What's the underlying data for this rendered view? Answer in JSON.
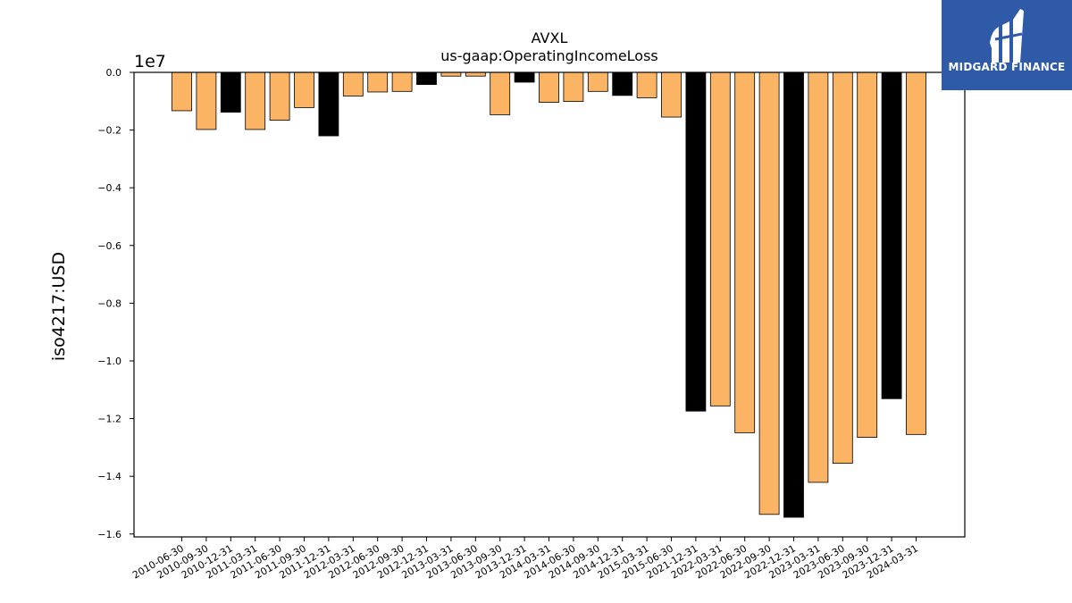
{
  "brand": {
    "name": "MIDGARD FINANCE",
    "bg_color": "#2e5aa8"
  },
  "chart_data": {
    "type": "bar",
    "title": "AVXL",
    "subtitle": "us-gaap:OperatingIncomeLoss",
    "ylabel": "iso4217:USD",
    "xlabel": "",
    "y_offset_label": "1e7",
    "ylim": [
      -16100000,
      0
    ],
    "yticks": [
      0,
      -2000000,
      -4000000,
      -6000000,
      -8000000,
      -10000000,
      -12000000,
      -14000000,
      -16000000
    ],
    "ytick_labels": [
      "0.0",
      "−0.2",
      "−0.4",
      "−0.6",
      "−0.8",
      "−1.0",
      "−1.2",
      "−1.4",
      "−1.6"
    ],
    "grid": false,
    "categories": [
      "2010-06-30",
      "2010-09-30",
      "2010-12-31",
      "2011-03-31",
      "2011-06-30",
      "2011-09-30",
      "2011-12-31",
      "2012-03-31",
      "2012-06-30",
      "2012-09-30",
      "2012-12-31",
      "2013-03-31",
      "2013-06-30",
      "2013-09-30",
      "2013-12-31",
      "2014-03-31",
      "2014-06-30",
      "2014-09-30",
      "2014-12-31",
      "2015-03-31",
      "2015-06-30",
      "2021-12-31",
      "2022-03-31",
      "2022-06-30",
      "2022-09-30",
      "2022-12-31",
      "2023-03-31",
      "2023-06-30",
      "2023-09-30",
      "2023-12-31",
      "2024-03-31"
    ],
    "values": [
      -1330000,
      -1980000,
      -1380000,
      -1980000,
      -1660000,
      -1220000,
      -2200000,
      -820000,
      -680000,
      -660000,
      -420000,
      -130000,
      -130000,
      -1470000,
      -340000,
      -1040000,
      -1010000,
      -660000,
      -800000,
      -880000,
      -1550000,
      -11740000,
      -11560000,
      -12490000,
      -15320000,
      -15420000,
      -14210000,
      -13550000,
      -12650000,
      -11310000,
      -12550000
    ],
    "bar_colors": [
      "#fbb364",
      "#fbb364",
      "#000000",
      "#fbb364",
      "#fbb364",
      "#fbb364",
      "#000000",
      "#fbb364",
      "#fbb364",
      "#fbb364",
      "#000000",
      "#fbb364",
      "#fbb364",
      "#fbb364",
      "#000000",
      "#fbb364",
      "#fbb364",
      "#fbb364",
      "#000000",
      "#fbb364",
      "#fbb364",
      "#000000",
      "#fbb364",
      "#fbb364",
      "#fbb364",
      "#000000",
      "#fbb364",
      "#fbb364",
      "#fbb364",
      "#000000",
      "#fbb364"
    ]
  }
}
